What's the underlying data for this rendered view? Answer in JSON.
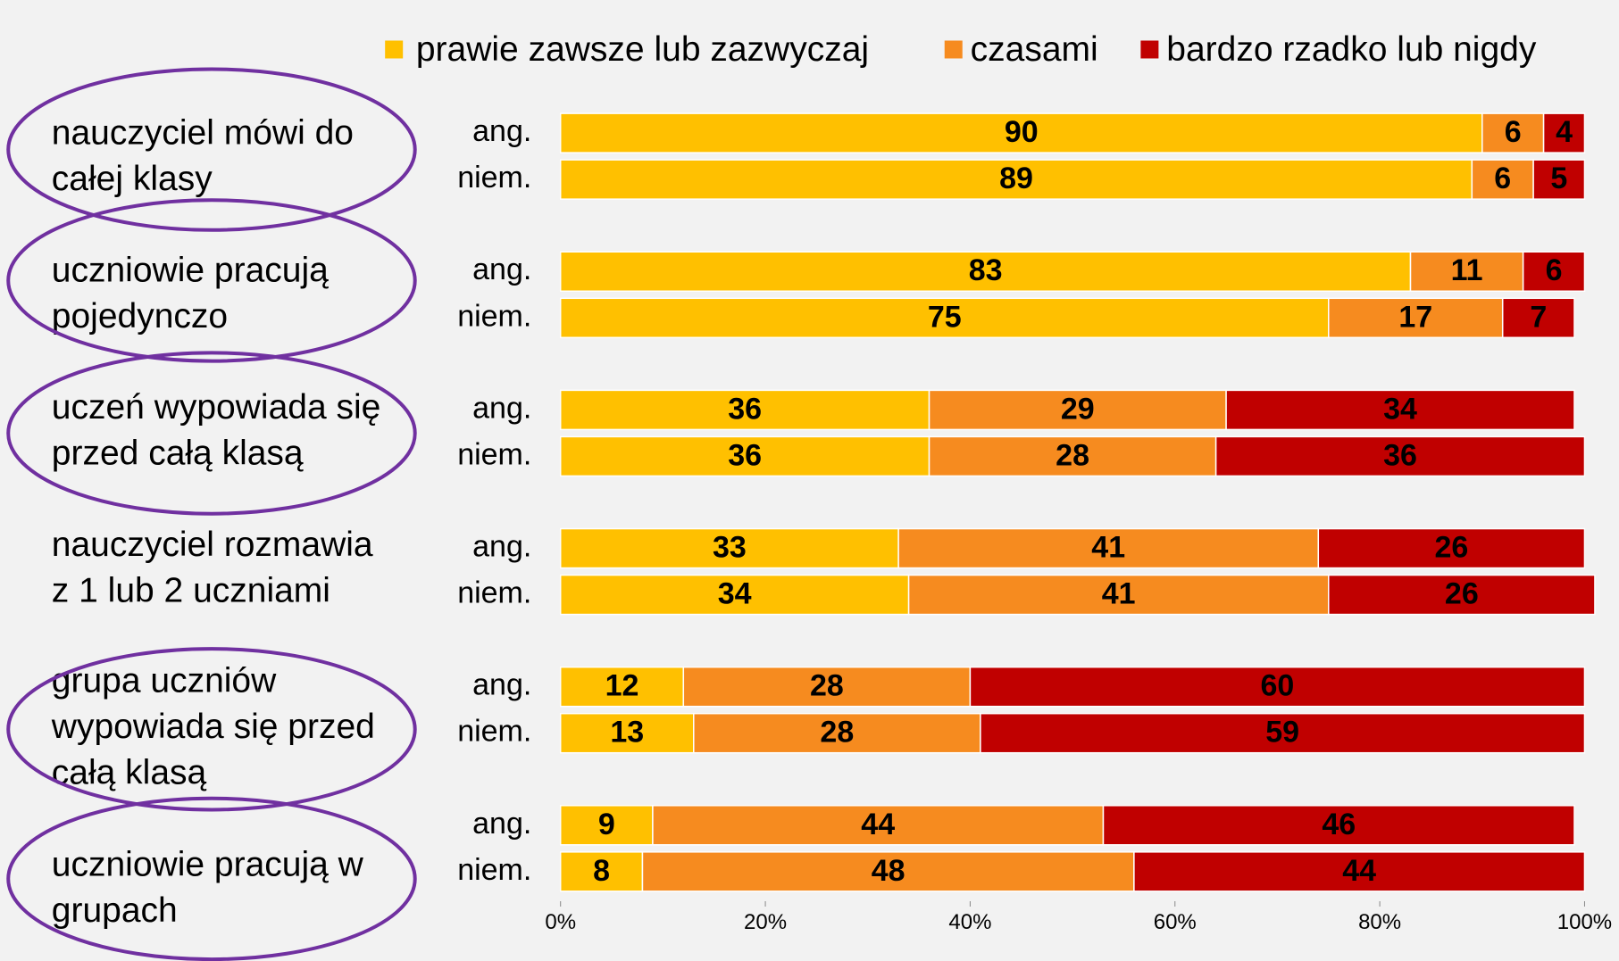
{
  "chart_data": {
    "type": "stacked-bar-horizontal",
    "groups": [
      [
        "nauczyciel mówi do",
        "całej klasy"
      ],
      [
        "uczniowie pracują",
        "pojedynczo"
      ],
      [
        "uczeń wypowiada się",
        "przed całą klasą"
      ],
      [
        "nauczyciel rozmawia",
        "z 1 lub 2 uczniami"
      ],
      [
        "grupa uczniów",
        "wypowiada się przed",
        "całą klasą"
      ],
      [
        "uczniowie pracują w",
        "grupach"
      ]
    ],
    "categories": [
      "ang.",
      "niem.",
      "ang.",
      "niem.",
      "ang.",
      "niem.",
      "ang.",
      "niem.",
      "ang.",
      "niem.",
      "ang.",
      "niem."
    ],
    "series": [
      {
        "name": "prawie zawsze lub zazwyczaj",
        "color": "#ffc000",
        "values": [
          90,
          89,
          83,
          75,
          36,
          36,
          33,
          34,
          12,
          13,
          9,
          8
        ]
      },
      {
        "name": "czasami",
        "color": "#f68b1f",
        "values": [
          6,
          6,
          11,
          17,
          29,
          28,
          41,
          41,
          28,
          28,
          44,
          48
        ]
      },
      {
        "name": "bardzo rzadko lub nigdy",
        "color": "#c00000",
        "values": [
          4,
          5,
          6,
          7,
          34,
          36,
          26,
          26,
          60,
          59,
          46,
          44
        ]
      }
    ],
    "xlim": [
      0,
      100
    ],
    "xticks": [
      {
        "value": 0,
        "label": "0%"
      },
      {
        "value": 20,
        "label": "20%"
      },
      {
        "value": 40,
        "label": "40%"
      },
      {
        "value": 60,
        "label": "60%"
      },
      {
        "value": 80,
        "label": "80%"
      },
      {
        "value": 100,
        "label": "100%"
      }
    ]
  }
}
